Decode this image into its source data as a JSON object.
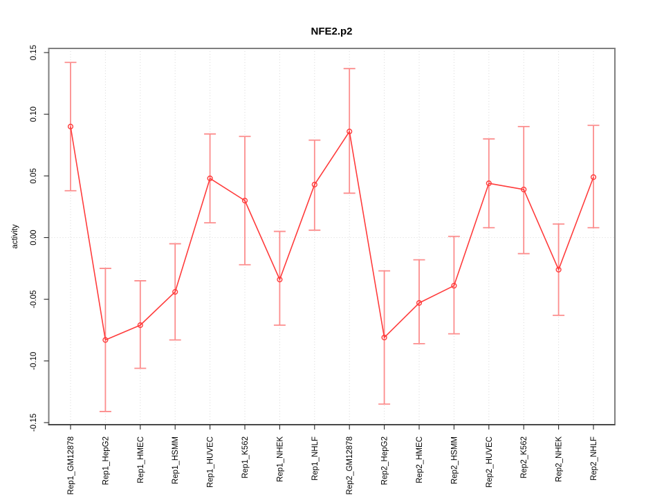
{
  "page": {
    "background": "#ffffff"
  },
  "chart_data": {
    "type": "line",
    "title": "NFE2.p2",
    "xlabel": "",
    "ylabel": "activity",
    "legend": "none",
    "grid": {
      "vertical_dotted_per_category": true,
      "horizontal_dotted_at_zero": true
    },
    "ylim": [
      -0.15,
      0.15
    ],
    "yticks": [
      0.15,
      0.1,
      0.05,
      0.0,
      -0.05,
      -0.1,
      -0.15
    ],
    "categories": [
      "Rep1_GM12878",
      "Rep1_HepG2",
      "Rep1_HMEC",
      "Rep1_HSMM",
      "Rep1_HUVEC",
      "Rep1_K562",
      "Rep1_NHEK",
      "Rep1_NHLF",
      "Rep2_GM12878",
      "Rep2_HepG2",
      "Rep2_HMEC",
      "Rep2_HSMM",
      "Rep2_HUVEC",
      "Rep2_K562",
      "Rep2_NHEK",
      "Rep2_NHLF"
    ],
    "series": [
      {
        "name": "activity",
        "means": [
          0.09,
          -0.083,
          -0.071,
          -0.044,
          0.048,
          0.03,
          -0.034,
          0.043,
          0.086,
          -0.081,
          -0.053,
          -0.039,
          0.044,
          0.039,
          -0.026,
          0.049
        ],
        "upper": [
          0.142,
          -0.025,
          -0.035,
          -0.005,
          0.084,
          0.082,
          0.005,
          0.079,
          0.137,
          -0.027,
          -0.018,
          0.001,
          0.08,
          0.09,
          0.011,
          0.091
        ],
        "lower": [
          0.038,
          -0.141,
          -0.106,
          -0.083,
          0.012,
          -0.022,
          -0.071,
          0.006,
          0.036,
          -0.135,
          -0.086,
          -0.078,
          0.008,
          -0.013,
          -0.063,
          0.008
        ]
      }
    ],
    "colors": {
      "line": "#ff3b3b",
      "point": "#ff3b3b",
      "error_bar": "#fc8d8d",
      "grid": "#d8d8d8",
      "box_border": "#7f7f7f",
      "axis": "#262626",
      "text": "#000000"
    }
  }
}
